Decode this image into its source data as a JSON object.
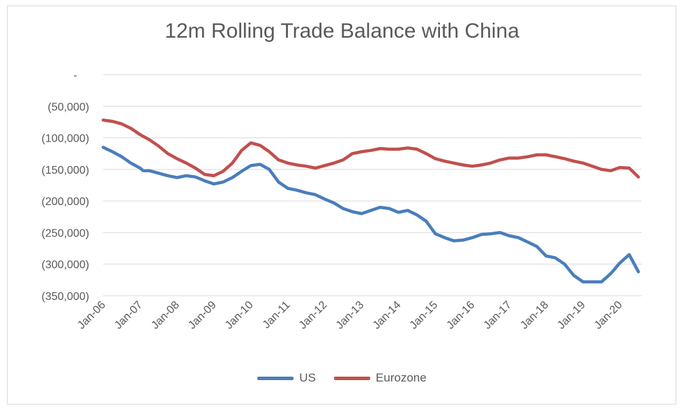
{
  "chart_data": {
    "type": "line",
    "title": "12m Rolling Trade Balance with China",
    "xlabel": "",
    "ylabel": "",
    "x_tick_labels": [
      "Jan-06",
      "Jan-07",
      "Jan-08",
      "Jan-09",
      "Jan-10",
      "Jan-11",
      "Jan-12",
      "Jan-13",
      "Jan-14",
      "Jan-15",
      "Jan-16",
      "Jan-17",
      "Jan-18",
      "Jan-19",
      "Jan-20"
    ],
    "y_tick_labels": [
      "-",
      "(50,000)",
      "(100,000)",
      "(150,000)",
      "(200,000)",
      "(250,000)",
      "(300,000)",
      "(350,000)"
    ],
    "ylim": [
      -350000,
      0
    ],
    "grid": true,
    "legend_position": "bottom",
    "series": [
      {
        "name": "US",
        "color": "#4a7ebb",
        "points": [
          [
            "2006-01",
            -115000
          ],
          [
            "2006-04",
            -122000
          ],
          [
            "2006-07",
            -130000
          ],
          [
            "2006-10",
            -140000
          ],
          [
            "2007-01",
            -148000
          ],
          [
            "2007-02",
            -152000
          ],
          [
            "2007-04",
            -152000
          ],
          [
            "2007-07",
            -156000
          ],
          [
            "2007-10",
            -160000
          ],
          [
            "2008-01",
            -163000
          ],
          [
            "2008-04",
            -160000
          ],
          [
            "2008-07",
            -162000
          ],
          [
            "2008-10",
            -168000
          ],
          [
            "2009-01",
            -173000
          ],
          [
            "2009-04",
            -170000
          ],
          [
            "2009-07",
            -163000
          ],
          [
            "2009-10",
            -153000
          ],
          [
            "2010-01",
            -144000
          ],
          [
            "2010-04",
            -142000
          ],
          [
            "2010-07",
            -150000
          ],
          [
            "2010-10",
            -170000
          ],
          [
            "2011-01",
            -180000
          ],
          [
            "2011-04",
            -183000
          ],
          [
            "2011-07",
            -187000
          ],
          [
            "2011-10",
            -190000
          ],
          [
            "2012-01",
            -197000
          ],
          [
            "2012-04",
            -203000
          ],
          [
            "2012-07",
            -212000
          ],
          [
            "2012-10",
            -217000
          ],
          [
            "2013-01",
            -220000
          ],
          [
            "2013-04",
            -215000
          ],
          [
            "2013-07",
            -210000
          ],
          [
            "2013-10",
            -212000
          ],
          [
            "2014-01",
            -218000
          ],
          [
            "2014-04",
            -215000
          ],
          [
            "2014-07",
            -222000
          ],
          [
            "2014-10",
            -232000
          ],
          [
            "2015-01",
            -252000
          ],
          [
            "2015-04",
            -258000
          ],
          [
            "2015-07",
            -263000
          ],
          [
            "2015-10",
            -262000
          ],
          [
            "2016-01",
            -258000
          ],
          [
            "2016-04",
            -253000
          ],
          [
            "2016-07",
            -252000
          ],
          [
            "2016-10",
            -250000
          ],
          [
            "2017-01",
            -255000
          ],
          [
            "2017-04",
            -258000
          ],
          [
            "2017-07",
            -265000
          ],
          [
            "2017-10",
            -272000
          ],
          [
            "2018-01",
            -287000
          ],
          [
            "2018-04",
            -290000
          ],
          [
            "2018-07",
            -300000
          ],
          [
            "2018-10",
            -318000
          ],
          [
            "2019-01",
            -328000
          ],
          [
            "2019-04",
            -328000
          ],
          [
            "2019-07",
            -328000
          ],
          [
            "2019-10",
            -315000
          ],
          [
            "2020-01",
            -298000
          ],
          [
            "2020-04",
            -285000
          ],
          [
            "2020-07",
            -312000
          ]
        ]
      },
      {
        "name": "Eurozone",
        "color": "#c0504d",
        "points": [
          [
            "2006-01",
            -72000
          ],
          [
            "2006-04",
            -74000
          ],
          [
            "2006-07",
            -78000
          ],
          [
            "2006-10",
            -85000
          ],
          [
            "2007-01",
            -95000
          ],
          [
            "2007-04",
            -103000
          ],
          [
            "2007-07",
            -113000
          ],
          [
            "2007-10",
            -125000
          ],
          [
            "2008-01",
            -133000
          ],
          [
            "2008-04",
            -140000
          ],
          [
            "2008-07",
            -148000
          ],
          [
            "2008-10",
            -158000
          ],
          [
            "2009-01",
            -160000
          ],
          [
            "2009-04",
            -153000
          ],
          [
            "2009-07",
            -140000
          ],
          [
            "2009-10",
            -120000
          ],
          [
            "2010-01",
            -108000
          ],
          [
            "2010-04",
            -112000
          ],
          [
            "2010-07",
            -122000
          ],
          [
            "2010-10",
            -135000
          ],
          [
            "2011-01",
            -140000
          ],
          [
            "2011-04",
            -143000
          ],
          [
            "2011-07",
            -145000
          ],
          [
            "2011-10",
            -148000
          ],
          [
            "2012-01",
            -144000
          ],
          [
            "2012-04",
            -140000
          ],
          [
            "2012-07",
            -135000
          ],
          [
            "2012-10",
            -125000
          ],
          [
            "2013-01",
            -122000
          ],
          [
            "2013-04",
            -120000
          ],
          [
            "2013-07",
            -117000
          ],
          [
            "2013-10",
            -118000
          ],
          [
            "2014-01",
            -118000
          ],
          [
            "2014-04",
            -116000
          ],
          [
            "2014-07",
            -118000
          ],
          [
            "2014-10",
            -125000
          ],
          [
            "2015-01",
            -133000
          ],
          [
            "2015-04",
            -137000
          ],
          [
            "2015-07",
            -140000
          ],
          [
            "2015-10",
            -143000
          ],
          [
            "2016-01",
            -145000
          ],
          [
            "2016-04",
            -143000
          ],
          [
            "2016-07",
            -140000
          ],
          [
            "2016-10",
            -135000
          ],
          [
            "2017-01",
            -132000
          ],
          [
            "2017-04",
            -132000
          ],
          [
            "2017-07",
            -130000
          ],
          [
            "2017-10",
            -127000
          ],
          [
            "2018-01",
            -127000
          ],
          [
            "2018-04",
            -130000
          ],
          [
            "2018-07",
            -133000
          ],
          [
            "2018-10",
            -137000
          ],
          [
            "2019-01",
            -140000
          ],
          [
            "2019-04",
            -145000
          ],
          [
            "2019-07",
            -150000
          ],
          [
            "2019-10",
            -152000
          ],
          [
            "2020-01",
            -147000
          ],
          [
            "2020-04",
            -148000
          ],
          [
            "2020-07",
            -162000
          ]
        ]
      }
    ]
  }
}
